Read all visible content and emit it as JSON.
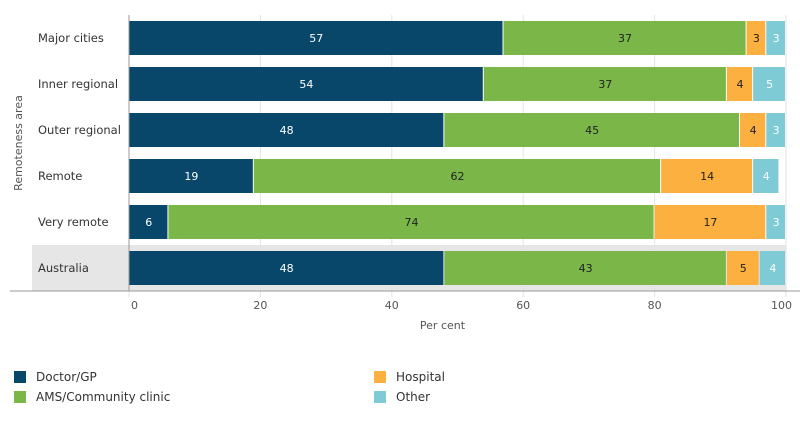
{
  "chart_data": {
    "type": "bar",
    "orientation": "horizontal",
    "stacked": true,
    "title": "",
    "xlabel": "Per cent",
    "ylabel": "Remoteness area",
    "xlim": [
      0,
      100
    ],
    "xticks": [
      "0",
      "20",
      "40",
      "60",
      "80",
      "100"
    ],
    "categories": [
      "Major cities",
      "Inner regional",
      "Outer regional",
      "Remote",
      "Very remote",
      "Australia"
    ],
    "highlight_category": "Australia",
    "series": [
      {
        "name": "Doctor/GP",
        "color": "#08466a",
        "values": [
          57,
          54,
          48,
          19,
          6,
          48
        ],
        "labels": [
          "57",
          "54",
          "48",
          "19",
          "6",
          "48"
        ]
      },
      {
        "name": "AMS/Community clinic",
        "color": "#7ab648",
        "values": [
          37,
          37,
          45,
          62,
          74,
          43
        ],
        "labels": [
          "37",
          "37",
          "45",
          "62",
          "74",
          "43"
        ]
      },
      {
        "name": "Hospital",
        "color": "#fbb040",
        "values": [
          3,
          4,
          4,
          14,
          17,
          5
        ],
        "labels": [
          "3",
          "4",
          "4",
          "14",
          "17",
          "5"
        ]
      },
      {
        "name": "Other",
        "color": "#7ecbd6",
        "values": [
          3,
          5,
          3,
          4,
          3,
          4
        ],
        "labels": [
          "3",
          "5",
          "3",
          "4",
          "3",
          "4"
        ]
      }
    ],
    "legend_position": "bottom"
  }
}
